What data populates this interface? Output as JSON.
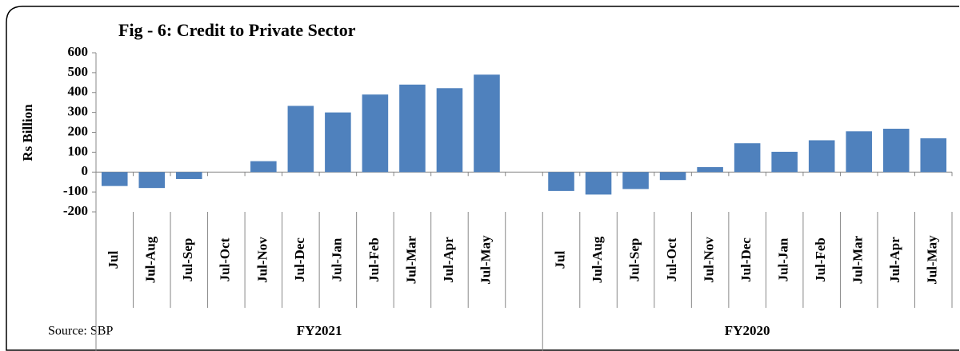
{
  "chart_data": {
    "type": "bar",
    "title": "Fig - 6: Credit to Private Sector",
    "y_label": "Rs Billion",
    "source": "Source: SBP",
    "categories": [
      "Jul",
      "Jul-Aug",
      "Jul-Sep",
      "Jul-Oct",
      "Jul-Nov",
      "Jul-Dec",
      "Jul-Jan",
      "Jul-Feb",
      "Jul-Mar",
      "Jul-Apr",
      "Jul-May",
      null,
      "Jul",
      "Jul-Aug",
      "Jul-Sep",
      "Jul-Oct",
      "Jul-Nov",
      "Jul-Dec",
      "Jul-Jan",
      "Jul-Feb",
      "Jul-Mar",
      "Jul-Apr",
      "Jul-May"
    ],
    "values": [
      -70,
      -80,
      -35,
      0,
      55,
      333,
      300,
      390,
      440,
      422,
      490,
      null,
      -95,
      -113,
      -85,
      -40,
      25,
      145,
      102,
      160,
      205,
      218,
      170
    ],
    "groups": [
      "FY2021",
      "FY2020"
    ],
    "color": "#4f81bd",
    "ylim": [
      -200,
      600
    ],
    "yticks": [
      -200,
      -100,
      0,
      100,
      200,
      300,
      400,
      500,
      600
    ]
  }
}
